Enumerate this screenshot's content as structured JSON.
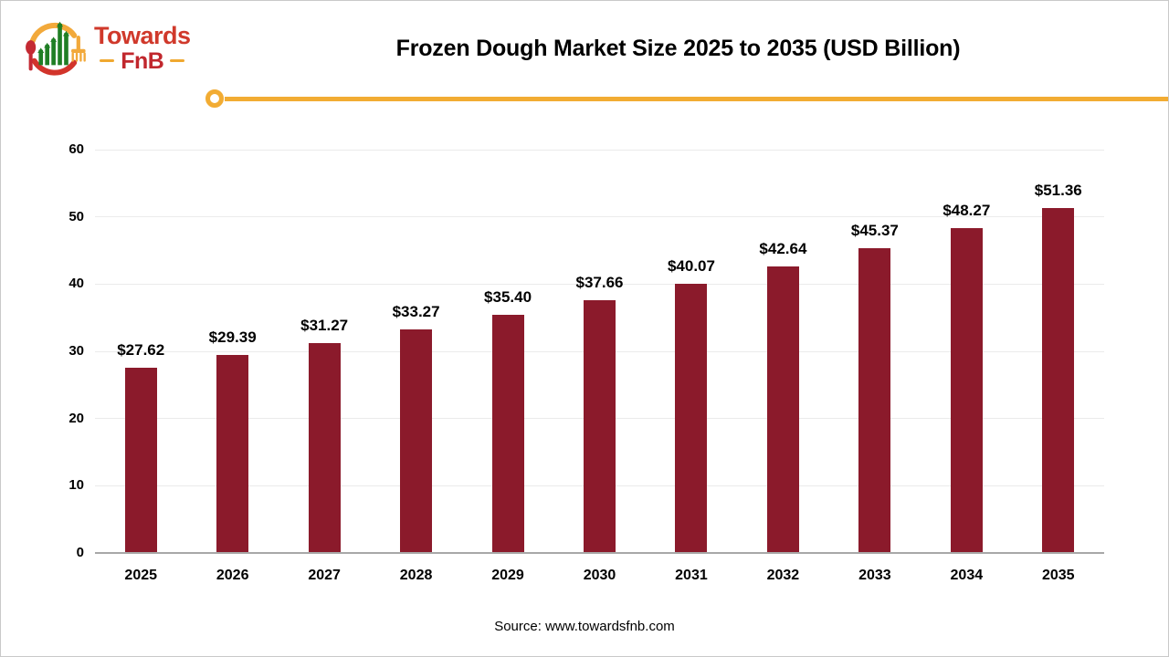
{
  "brand": {
    "name_line1": "Towards",
    "name_line2": "FnB",
    "icon": "spoon-fork-growth-bars-logo"
  },
  "header": {
    "title": "Frozen Dough Market Size 2025 to 2035 (USD Billion)"
  },
  "footer": {
    "source_text": "Source: www.towardsfnb.com"
  },
  "chart_data": {
    "type": "bar",
    "title": "Frozen Dough Market Size 2025 to 2035 (USD Billion)",
    "unit": "USD Billion",
    "categories": [
      "2025",
      "2026",
      "2027",
      "2028",
      "2029",
      "2030",
      "2031",
      "2032",
      "2033",
      "2034",
      "2035"
    ],
    "values": [
      27.62,
      29.39,
      31.27,
      33.27,
      35.4,
      37.66,
      40.07,
      42.64,
      45.37,
      48.27,
      51.36
    ],
    "value_labels": [
      "$27.62",
      "$29.39",
      "$31.27",
      "$33.27",
      "$35.40",
      "$37.66",
      "$40.07",
      "$42.64",
      "$45.37",
      "$48.27",
      "$51.36"
    ],
    "xlabel": "",
    "ylabel": "",
    "ylim": [
      0,
      60
    ],
    "yticks": [
      0,
      10,
      20,
      30,
      40,
      50,
      60
    ],
    "grid": true,
    "legend": "none",
    "bar_color": "#8b1a2b"
  },
  "colors": {
    "bar": "#8b1a2b",
    "accent_line": "#f2ac33",
    "gridline": "#ebebeb",
    "axis_line": "#a8a8a8",
    "logo_red": "#d0392b",
    "logo_dark_red": "#c1272d",
    "logo_green": "#1f7e24",
    "logo_yellow": "#f2a93b",
    "text": "#000000"
  }
}
